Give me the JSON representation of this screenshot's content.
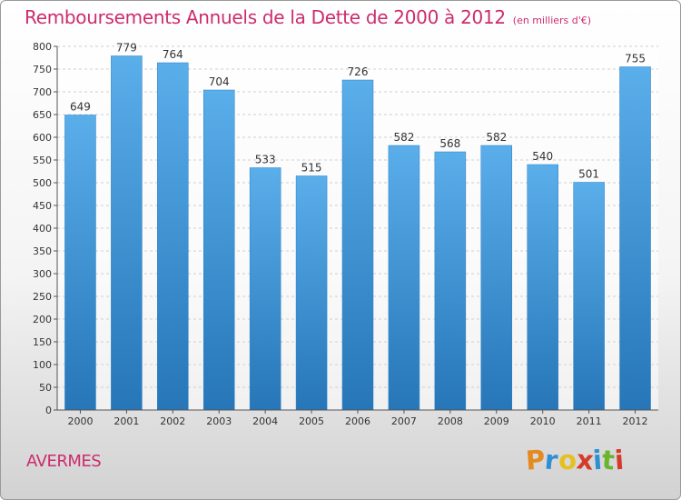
{
  "chart_data": {
    "type": "bar",
    "title": "Remboursements Annuels de la Dette de 2000 à 2012",
    "subtitle": "(en milliers d'€)",
    "categories": [
      "2000",
      "2001",
      "2002",
      "2003",
      "2004",
      "2005",
      "2006",
      "2007",
      "2008",
      "2009",
      "2010",
      "2011",
      "2012"
    ],
    "values": [
      649,
      779,
      764,
      704,
      533,
      515,
      726,
      582,
      568,
      582,
      540,
      501,
      755
    ],
    "yticks": [
      0,
      50,
      100,
      150,
      200,
      250,
      300,
      350,
      400,
      450,
      500,
      550,
      600,
      650,
      700,
      750,
      800
    ],
    "ylim": [
      0,
      800
    ],
    "grid": true,
    "legend": "none",
    "bar_color": "#3a96dc",
    "bar_color_light": "#5aaeea",
    "bar_color_dark": "#2676b8"
  },
  "place_name": "AVERMES",
  "logo": {
    "letters": [
      "P",
      "r",
      "o",
      "x",
      "i",
      "t",
      "i"
    ],
    "colors": [
      "#e58a1f",
      "#2e8fd4",
      "#e6c020",
      "#d63a2a",
      "#2e8fd4",
      "#6ab42e",
      "#d63a2a"
    ]
  }
}
